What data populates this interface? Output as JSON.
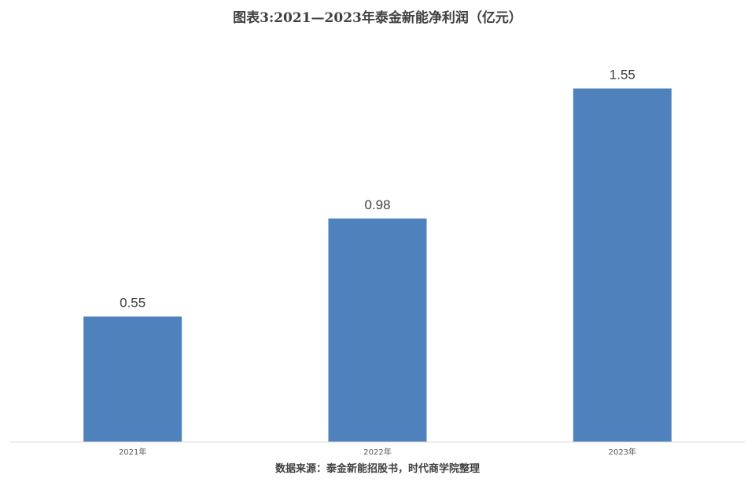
{
  "chart_data": {
    "type": "bar",
    "title": "图表3:2021—2023年泰金新能净利润（亿元）",
    "categories": [
      "2021年",
      "2022年",
      "2023年"
    ],
    "values": [
      0.55,
      0.98,
      1.55
    ],
    "data_labels": [
      "0.55",
      "0.98",
      "1.55"
    ],
    "bar_color": "#4F81BD",
    "ylim": [
      0,
      1.7
    ],
    "grid": false,
    "legend": "none",
    "source": "数据来源：泰金新能招股书，时代商学院整理"
  }
}
